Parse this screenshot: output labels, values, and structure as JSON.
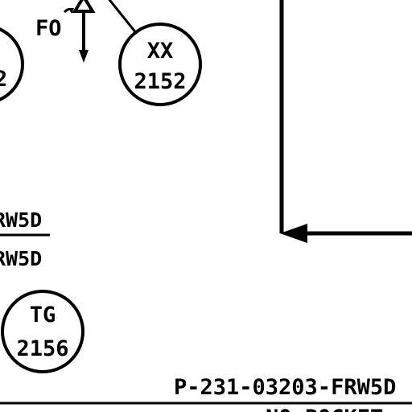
{
  "drawing": {
    "ink_color": "#000000",
    "background_color": "#ffffff",
    "valve_mark": {
      "fail_label": "FO"
    },
    "instruments": [
      {
        "id": "left-partial",
        "code": "",
        "number": "2"
      },
      {
        "id": "xx-2152",
        "code": "XX",
        "number": "2152"
      },
      {
        "id": "tg-2156",
        "code": "TG",
        "number": "2156"
      }
    ],
    "side_labels": {
      "upper": "RW5D",
      "lower": "RW5D"
    },
    "line_number": "P-231-03203-FRW5D",
    "bottom_cut_text": "NO POCKET"
  }
}
